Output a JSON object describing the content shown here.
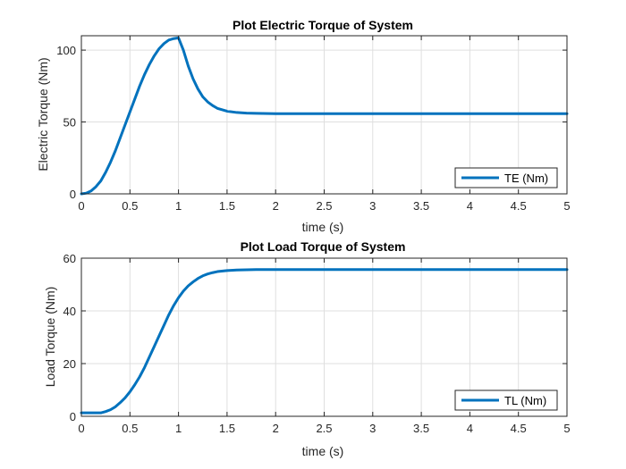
{
  "chart_data": [
    {
      "type": "line",
      "title": "Plot Electric Torque of System",
      "xlabel": "time (s)",
      "ylabel": "Electric Torque (Nm)",
      "xlim": [
        0,
        5
      ],
      "ylim": [
        0,
        110
      ],
      "xticks": [
        0,
        0.5,
        1,
        1.5,
        2,
        2.5,
        3,
        3.5,
        4,
        4.5,
        5
      ],
      "xtick_labels": [
        "0",
        "0.5",
        "1",
        "1.5",
        "2",
        "2.5",
        "3",
        "3.5",
        "4",
        "4.5",
        "5"
      ],
      "yticks": [
        0,
        50,
        100
      ],
      "ytick_labels": [
        "0",
        "50",
        "100"
      ],
      "grid": true,
      "legend_position": "bottom-right",
      "series": [
        {
          "name": "TE (Nm)",
          "color": "#0072BD",
          "x": [
            0,
            0.05,
            0.1,
            0.15,
            0.2,
            0.25,
            0.3,
            0.35,
            0.4,
            0.45,
            0.5,
            0.55,
            0.6,
            0.65,
            0.7,
            0.75,
            0.8,
            0.85,
            0.9,
            0.95,
            1.0,
            1.05,
            1.1,
            1.15,
            1.2,
            1.25,
            1.3,
            1.35,
            1.4,
            1.5,
            1.6,
            1.7,
            1.8,
            2.0,
            2.2,
            2.5,
            3.0,
            3.5,
            4.0,
            4.5,
            5.0
          ],
          "y": [
            0,
            0.5,
            2,
            5,
            9,
            15,
            22,
            30,
            39,
            48,
            57,
            66,
            75,
            83,
            90,
            96,
            101,
            104.5,
            107,
            108,
            108.5,
            100,
            89,
            80,
            73,
            67.5,
            64,
            61.5,
            59.5,
            57.5,
            56.6,
            56.2,
            56,
            55.8,
            55.8,
            55.8,
            55.8,
            55.8,
            55.8,
            55.8,
            55.8
          ]
        }
      ]
    },
    {
      "type": "line",
      "title": "Plot Load Torque of System",
      "xlabel": "time (s)",
      "ylabel": "Load Torque (Nm)",
      "xlim": [
        0,
        5
      ],
      "ylim": [
        0,
        60
      ],
      "xticks": [
        0,
        0.5,
        1,
        1.5,
        2,
        2.5,
        3,
        3.5,
        4,
        4.5,
        5
      ],
      "xtick_labels": [
        "0",
        "0.5",
        "1",
        "1.5",
        "2",
        "2.5",
        "3",
        "3.5",
        "4",
        "4.5",
        "5"
      ],
      "yticks": [
        0,
        20,
        40,
        60
      ],
      "ytick_labels": [
        "0",
        "20",
        "40",
        "60"
      ],
      "grid": true,
      "legend_position": "bottom-right",
      "series": [
        {
          "name": "TL (Nm)",
          "color": "#0072BD",
          "x": [
            0,
            0.1,
            0.2,
            0.25,
            0.3,
            0.35,
            0.4,
            0.45,
            0.5,
            0.55,
            0.6,
            0.65,
            0.7,
            0.75,
            0.8,
            0.85,
            0.9,
            0.95,
            1.0,
            1.05,
            1.1,
            1.15,
            1.2,
            1.25,
            1.3,
            1.35,
            1.4,
            1.5,
            1.6,
            1.7,
            1.8,
            2.0,
            2.5,
            3.0,
            3.5,
            4.0,
            4.5,
            5.0
          ],
          "y": [
            1.3,
            1.3,
            1.3,
            1.8,
            2.5,
            3.6,
            5.2,
            7.0,
            9.3,
            12.0,
            15.0,
            18.5,
            22.5,
            26.5,
            30.5,
            34.5,
            38.5,
            42.0,
            45.0,
            47.5,
            49.5,
            51.0,
            52.3,
            53.3,
            54.0,
            54.5,
            54.9,
            55.3,
            55.5,
            55.6,
            55.7,
            55.7,
            55.7,
            55.7,
            55.7,
            55.7,
            55.7,
            55.7
          ]
        }
      ]
    }
  ]
}
